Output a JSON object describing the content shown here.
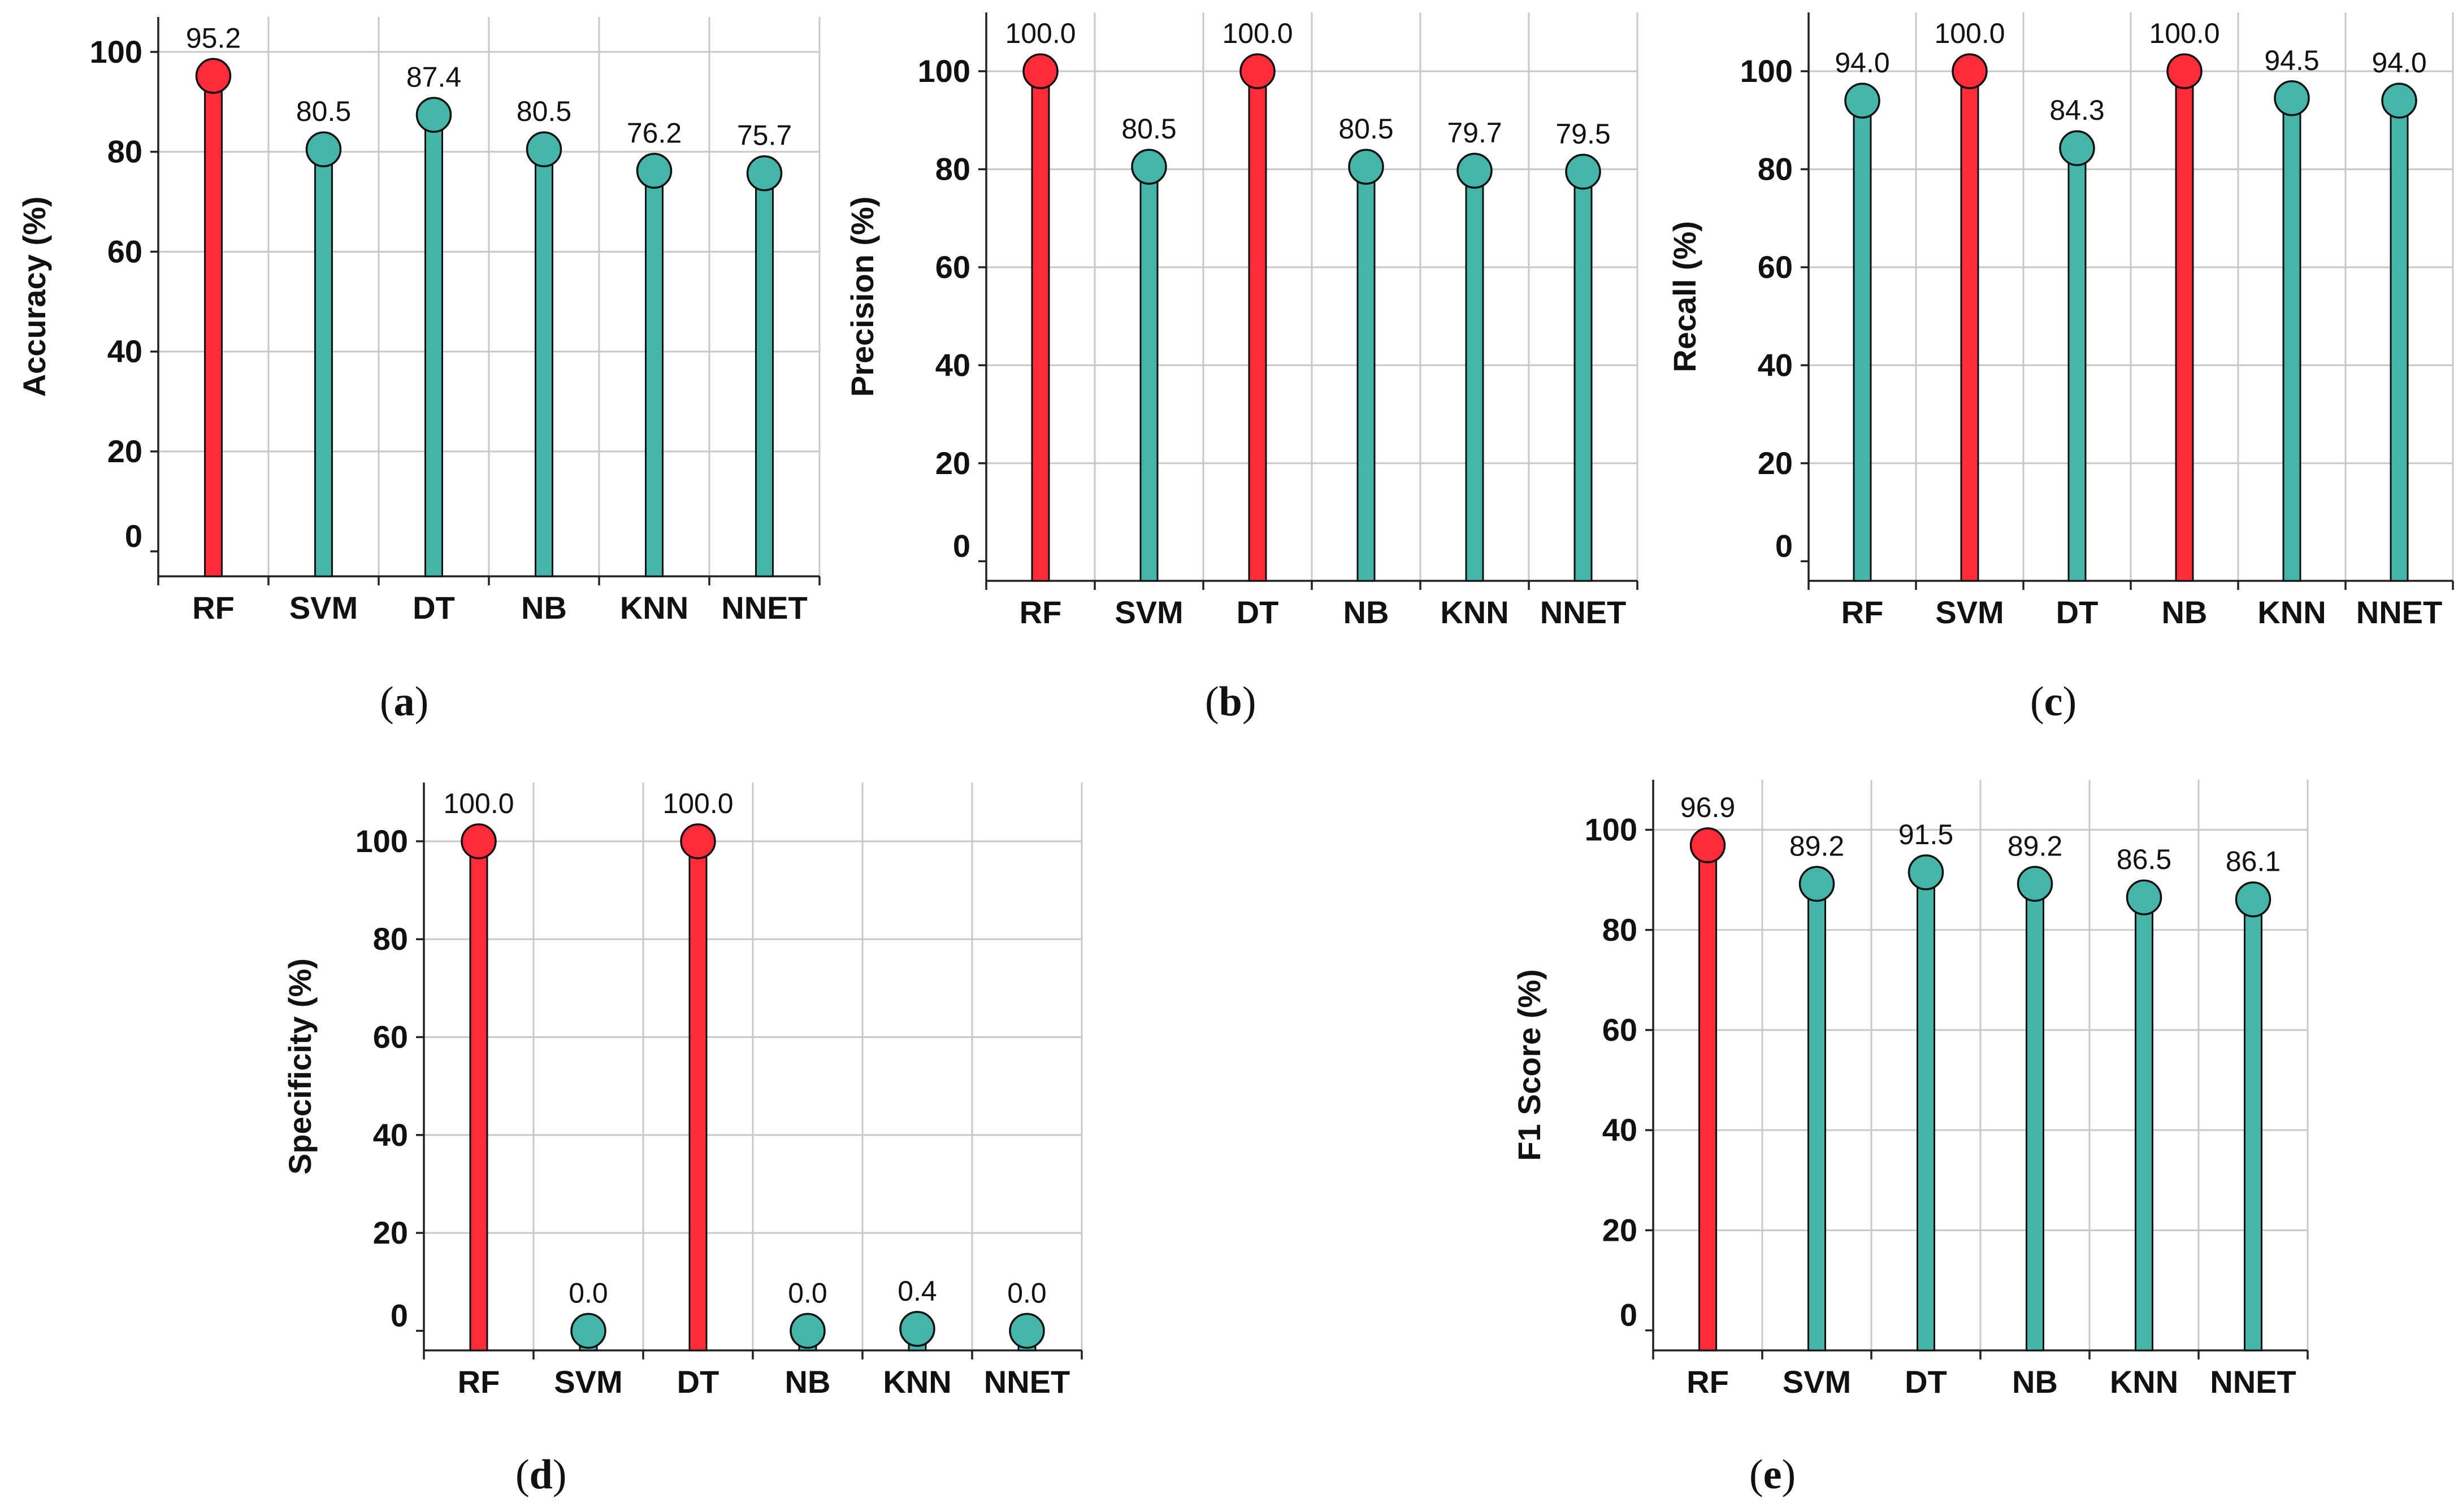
{
  "colors": {
    "highlight": "#ff2b3a",
    "normal": "#45b5a8",
    "grid": "#c8c8c8",
    "axis": "#222222"
  },
  "chart_data": [
    {
      "id": "a",
      "type": "lollipop",
      "caption": "a",
      "ylabel": "Accuracy (%)",
      "ylim": [
        -5,
        107
      ],
      "yticks": [
        0,
        20,
        40,
        60,
        80,
        100
      ],
      "categories": [
        "RF",
        "SVM",
        "DT",
        "NB",
        "KNN",
        "NNET"
      ],
      "values": [
        95.2,
        80.5,
        87.4,
        80.5,
        76.2,
        75.7
      ],
      "labels": [
        "95.2",
        "80.5",
        "87.4",
        "80.5",
        "76.2",
        "75.7"
      ],
      "highlight": [
        true,
        false,
        false,
        false,
        false,
        false
      ],
      "grid": true
    },
    {
      "id": "b",
      "type": "lollipop",
      "caption": "b",
      "ylabel": "Precision (%)",
      "ylim": [
        -4,
        112
      ],
      "yticks": [
        0,
        20,
        40,
        60,
        80,
        100
      ],
      "categories": [
        "RF",
        "SVM",
        "DT",
        "NB",
        "KNN",
        "NNET"
      ],
      "values": [
        100.0,
        80.5,
        100.0,
        80.5,
        79.7,
        79.5
      ],
      "labels": [
        "100.0",
        "80.5",
        "100.0",
        "80.5",
        "79.7",
        "79.5"
      ],
      "highlight": [
        true,
        false,
        true,
        false,
        false,
        false
      ],
      "grid": true
    },
    {
      "id": "c",
      "type": "lollipop",
      "caption": "c",
      "ylabel": "Recall (%)",
      "ylim": [
        -4,
        112
      ],
      "yticks": [
        0,
        20,
        40,
        60,
        80,
        100
      ],
      "categories": [
        "RF",
        "SVM",
        "DT",
        "NB",
        "KNN",
        "NNET"
      ],
      "values": [
        94.0,
        100.0,
        84.3,
        100.0,
        94.5,
        94.0
      ],
      "labels": [
        "94.0",
        "100.0",
        "84.3",
        "100.0",
        "94.5",
        "94.0"
      ],
      "highlight": [
        false,
        true,
        false,
        true,
        false,
        false
      ],
      "grid": true
    },
    {
      "id": "d",
      "type": "lollipop",
      "caption": "d",
      "ylabel": "Specificity (%)",
      "ylim": [
        -4,
        112
      ],
      "yticks": [
        0,
        20,
        40,
        60,
        80,
        100
      ],
      "categories": [
        "RF",
        "SVM",
        "DT",
        "NB",
        "KNN",
        "NNET"
      ],
      "values": [
        100.0,
        0.0,
        100.0,
        0.0,
        0.4,
        0.0
      ],
      "labels": [
        "100.0",
        "0.0",
        "100.0",
        "0.0",
        "0.4",
        "0.0"
      ],
      "highlight": [
        true,
        false,
        true,
        false,
        false,
        false
      ],
      "grid": true
    },
    {
      "id": "e",
      "type": "lollipop",
      "caption": "e",
      "ylabel": "F1  Score (%)",
      "ylim": [
        -4,
        110
      ],
      "yticks": [
        0,
        20,
        40,
        60,
        80,
        100
      ],
      "categories": [
        "RF",
        "SVM",
        "DT",
        "NB",
        "KNN",
        "NNET"
      ],
      "values": [
        96.9,
        89.2,
        91.5,
        89.2,
        86.5,
        86.1
      ],
      "labels": [
        "96.9",
        "89.2",
        "91.5",
        "89.2",
        "86.5",
        "86.1"
      ],
      "highlight": [
        true,
        false,
        false,
        false,
        false,
        false
      ],
      "grid": true
    }
  ]
}
